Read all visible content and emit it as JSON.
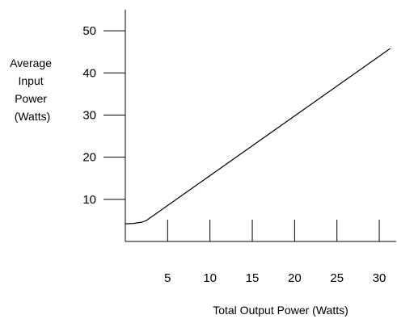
{
  "chart_data": {
    "type": "line",
    "title": "",
    "xlabel": "Total Output Power (Watts)",
    "ylabel_lines": [
      "Average",
      "Input",
      "Power",
      "(Watts)"
    ],
    "xlim": [
      0,
      32
    ],
    "ylim": [
      0,
      55
    ],
    "x_ticks": [
      5,
      10,
      15,
      20,
      25,
      30
    ],
    "y_ticks": [
      10,
      20,
      30,
      40,
      50
    ],
    "grid": false,
    "legend": "none",
    "series": [
      {
        "x": [
          0,
          1,
          2,
          2.5,
          31.3
        ],
        "y": [
          4.2,
          4.3,
          4.6,
          5.0,
          45.8
        ]
      }
    ]
  }
}
